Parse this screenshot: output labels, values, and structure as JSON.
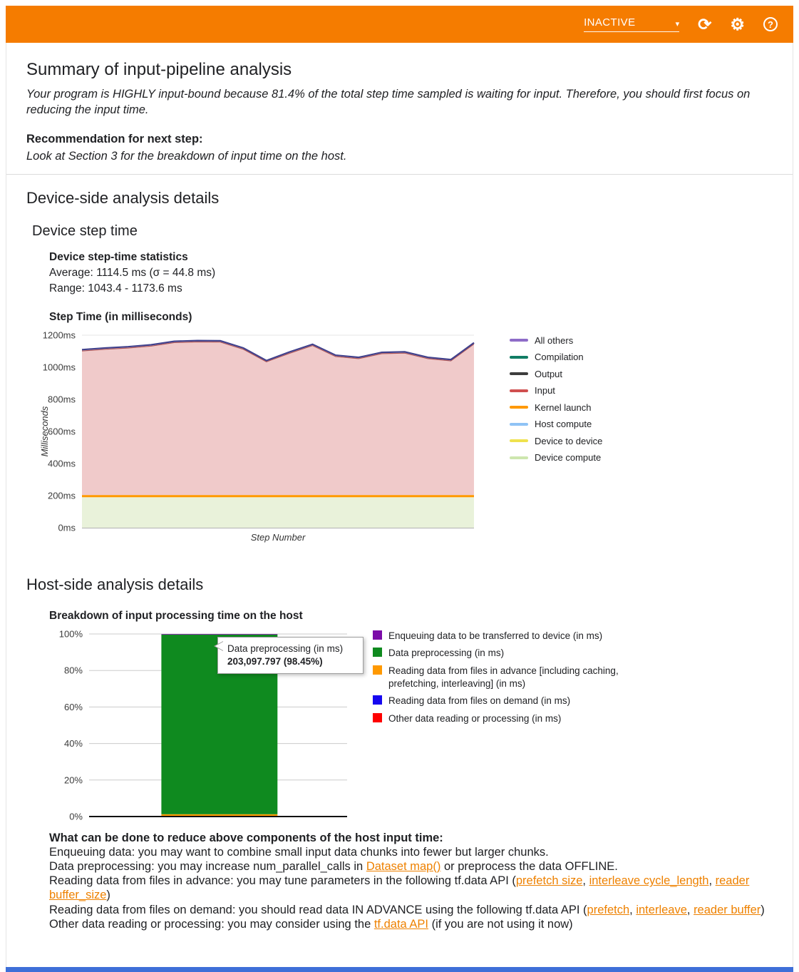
{
  "header": {
    "status_label": "INACTIVE",
    "refresh_icon": "⟳",
    "settings_icon": "⚙",
    "help_icon": "?"
  },
  "colors": {
    "header_bg": "#f57c00",
    "footer_bar": "#3e6fd8",
    "link": "#ee8100"
  },
  "summary": {
    "title": "Summary of input-pipeline analysis",
    "body": "Your program is HIGHLY input-bound because 81.4% of the total step time sampled is waiting for input. Therefore, you should first focus on reducing the input time.",
    "recommendation_label": "Recommendation for next step:",
    "recommendation_body": "Look at Section 3 for the breakdown of input time on the host."
  },
  "device": {
    "section_title": "Device-side analysis details",
    "subsection_title": "Device step time",
    "stats_title": "Device step-time statistics",
    "average_line": "Average: 1114.5 ms (σ = 44.8 ms)",
    "range_line": "Range: 1043.4 - 1173.6 ms"
  },
  "host": {
    "section_title": "Host-side analysis details"
  },
  "chart_data": [
    {
      "type": "area",
      "title": "Step Time (in milliseconds)",
      "xlabel": "Step Number",
      "ylabel": "Milliseconds",
      "ylim": [
        0,
        1200
      ],
      "ytick_step": 200,
      "ytick_labels": [
        "0ms",
        "200ms",
        "400ms",
        "600ms",
        "800ms",
        "1000ms",
        "1200ms"
      ],
      "grid": true,
      "legend_position": "right",
      "totals": [
        1110,
        1120,
        1128,
        1140,
        1162,
        1166,
        1165,
        1120,
        1042,
        1095,
        1143,
        1075,
        1062,
        1093,
        1096,
        1062,
        1048,
        1153
      ],
      "series": [
        {
          "name": "Device compute",
          "constant": 190,
          "fill": "#e9f2da"
        },
        {
          "name": "Kernel launch",
          "constant": 14,
          "fill": "#ff9900"
        },
        {
          "name": "Input",
          "headroom": 8,
          "fill": "#f0caca",
          "edge": "#b05656"
        }
      ],
      "total_line_color": "#41418c",
      "legend": [
        {
          "label": "All others",
          "color": "#8e6cc8"
        },
        {
          "label": "Compilation",
          "color": "#117d64"
        },
        {
          "label": "Output",
          "color": "#3d3d3d"
        },
        {
          "label": "Input",
          "color": "#d04f4f"
        },
        {
          "label": "Kernel launch",
          "color": "#ff9900"
        },
        {
          "label": "Host compute",
          "color": "#8fc3f5"
        },
        {
          "label": "Device to device",
          "color": "#efe24e"
        },
        {
          "label": "Device compute",
          "color": "#cde6ae"
        }
      ]
    },
    {
      "type": "bar",
      "stacked": true,
      "title": "Breakdown of input processing time on the host",
      "ylim": [
        0,
        100
      ],
      "ytick_labels": [
        "0%",
        "20%",
        "40%",
        "60%",
        "80%",
        "100%"
      ],
      "segments_bottom_to_top": [
        {
          "label": "Other data reading or processing (in ms)",
          "color": "#fe0000",
          "percent": 0.05
        },
        {
          "label": "Reading data from files on demand (in ms)",
          "color": "#1607f0",
          "percent": 0.05
        },
        {
          "label": "Reading data from files in advance [including caching, prefetching, interleaving] (in ms)",
          "color": "#ff9900",
          "percent": 1.15
        },
        {
          "label": "Data preprocessing (in ms)",
          "color": "#0f8a1f",
          "percent": 98.45
        },
        {
          "label": "Enqueuing data to be transferred to device (in ms)",
          "color": "#7b0ca8",
          "percent": 0.3
        }
      ],
      "tooltip": {
        "label": "Data preprocessing (in ms)",
        "value": "203,097.797 (98.45%)"
      }
    }
  ],
  "advice": {
    "title": "What can be done to reduce above components of the host input time:",
    "lines": [
      [
        {
          "t": "Enqueuing data: you may want to combine small input data chunks into fewer but larger chunks."
        }
      ],
      [
        {
          "t": "Data preprocessing: you may increase num_parallel_calls in "
        },
        {
          "t": "Dataset map()",
          "link": true
        },
        {
          "t": " or preprocess the data OFFLINE."
        }
      ],
      [
        {
          "t": "Reading data from files in advance: you may tune parameters in the following tf.data API ("
        },
        {
          "t": "prefetch size",
          "link": true
        },
        {
          "t": ", "
        },
        {
          "t": "interleave cycle_length",
          "link": true
        },
        {
          "t": ", "
        },
        {
          "t": "reader buffer_size",
          "link": true
        },
        {
          "t": ")"
        }
      ],
      [
        {
          "t": "Reading data from files on demand: you should read data IN ADVANCE using the following tf.data API ("
        },
        {
          "t": "prefetch",
          "link": true
        },
        {
          "t": ", "
        },
        {
          "t": "interleave",
          "link": true
        },
        {
          "t": ", "
        },
        {
          "t": "reader buffer",
          "link": true
        },
        {
          "t": ")"
        }
      ],
      [
        {
          "t": "Other data reading or processing: you may consider using the "
        },
        {
          "t": "tf.data API",
          "link": true
        },
        {
          "t": " (if you are not using it now)"
        }
      ]
    ]
  }
}
